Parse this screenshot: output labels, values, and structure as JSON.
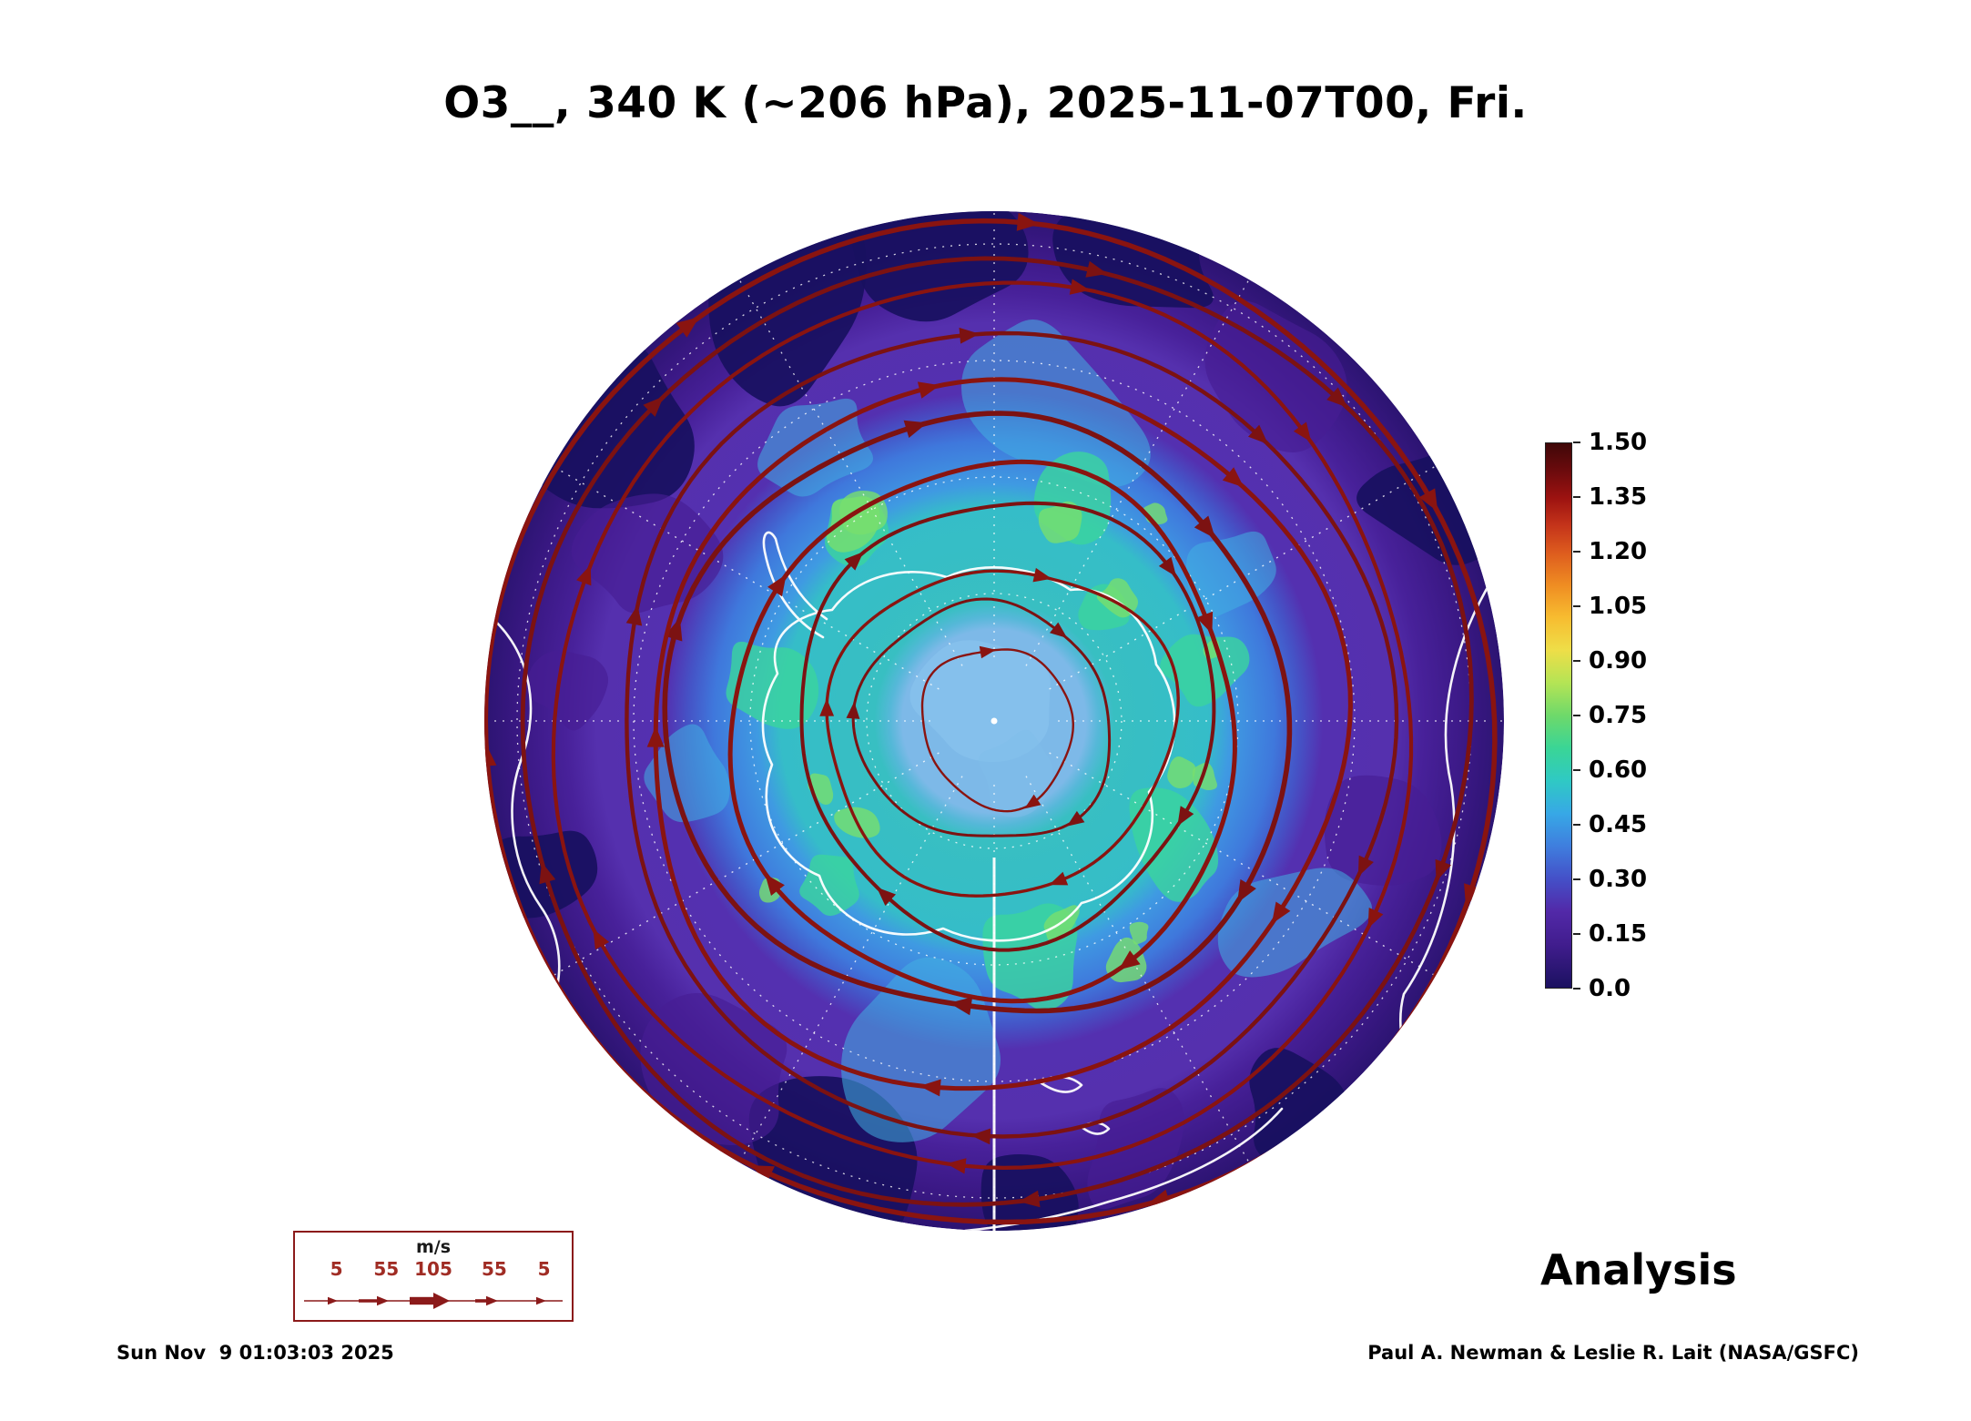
{
  "title": "O3__, 340 K (~206 hPa), 2025-11-07T00, Fri.",
  "analysis_label": "Analysis",
  "timestamp": "Sun Nov  9 01:03:03 2025",
  "credit": "Paul A. Newman & Leslie R. Lait (NASA/GSFC)",
  "wind_legend": {
    "unit": "m/s",
    "labels": [
      "5",
      "55",
      "105",
      "55",
      "5"
    ]
  },
  "colorbar": {
    "ticks": [
      "1.50",
      "1.35",
      "1.20",
      "1.05",
      "0.90",
      "0.75",
      "0.60",
      "0.45",
      "0.30",
      "0.15",
      "0.0"
    ],
    "gradient": [
      [
        "0%",
        "#3f0708"
      ],
      [
        "5%",
        "#6b0b0d"
      ],
      [
        "10%",
        "#9c1210"
      ],
      [
        "15%",
        "#c4331a"
      ],
      [
        "20%",
        "#dd5b1e"
      ],
      [
        "26%",
        "#ef8c22"
      ],
      [
        "32%",
        "#f7bc30"
      ],
      [
        "38%",
        "#eede48"
      ],
      [
        "44%",
        "#b4e455"
      ],
      [
        "50%",
        "#6ed96a"
      ],
      [
        "56%",
        "#3ad596"
      ],
      [
        "62%",
        "#2fc9c4"
      ],
      [
        "68%",
        "#37a8e6"
      ],
      [
        "74%",
        "#3f7ede"
      ],
      [
        "80%",
        "#4450c8"
      ],
      [
        "86%",
        "#5229a8"
      ],
      [
        "92%",
        "#411d8e"
      ],
      [
        "100%",
        "#1b1160"
      ]
    ]
  },
  "chart_data": {
    "type": "heatmap",
    "title": "O3__, 340 K (~206 hPa), 2025-11-07T00, Fri.",
    "variable": "O3",
    "level": "340 K (~206 hPa)",
    "valid_time": "2025-11-07T00",
    "weekday": "Fri.",
    "product": "Analysis",
    "projection": "south-polar stereographic (Antarctica centered)",
    "colorbar_range": [
      0.0,
      1.5
    ],
    "colorbar_tick_step": 0.15,
    "colorbar_ticks": [
      1.5,
      1.35,
      1.2,
      1.05,
      0.9,
      0.75,
      0.6,
      0.45,
      0.3,
      0.15,
      0.0
    ],
    "overlays": [
      "wind streamlines with arrowheads (dark red), roughly circumpolar closed loops",
      "coastlines (white)",
      "latitude/longitude graticule (white dashed), solid white meridian toward bottom"
    ],
    "wind_speed_scale_ms": [
      5,
      55,
      105,
      55,
      5
    ],
    "approx_field_by_region": [
      {
        "region": "pole / vortex center",
        "value_range": [
          0.3,
          0.4
        ]
      },
      {
        "region": "vortex collar ring (cyan-green band)",
        "value_range": [
          0.45,
          0.6
        ]
      },
      {
        "region": "mid-latitude blue ring",
        "value_range": [
          0.3,
          0.45
        ]
      },
      {
        "region": "outer purple ring",
        "value_range": [
          0.1,
          0.25
        ]
      },
      {
        "region": "dark navy patches near map edge",
        "value_range": [
          0.0,
          0.1
        ]
      }
    ],
    "generated_timestamp": "Sun Nov  9 01:03:03 2025",
    "credit": "Paul A. Newman & Leslie R. Lait (NASA/GSFC)"
  }
}
